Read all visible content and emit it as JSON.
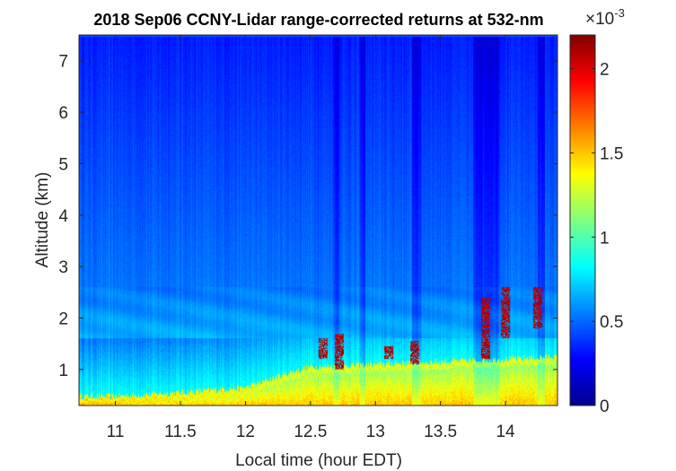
{
  "chart_data": {
    "type": "heatmap",
    "title": "2018 Sep06 CCNY-Lidar range-corrected returns at 532-nm",
    "xlabel": "Local time (hour EDT)",
    "ylabel": "Altitude (km)",
    "xlim": [
      10.72,
      14.4
    ],
    "ylim": [
      0.3,
      7.5
    ],
    "xticks": [
      11,
      11.5,
      12,
      12.5,
      13,
      13.5,
      14
    ],
    "xtick_labels": [
      "11",
      "11.5",
      "12",
      "12.5",
      "13",
      "13.5",
      "14"
    ],
    "yticks": [
      1,
      2,
      3,
      4,
      5,
      6,
      7
    ],
    "ytick_labels": [
      "1",
      "2",
      "3",
      "4",
      "5",
      "6",
      "7"
    ],
    "colormap": "jet",
    "colorbar": {
      "clim": [
        0,
        0.0022
      ],
      "ticks": [
        0,
        0.0005,
        0.001,
        0.0015,
        0.002
      ],
      "tick_labels": [
        "0",
        "0.5",
        "1",
        "1.5",
        "2"
      ],
      "exponent_base": "×10",
      "exponent_power": "-3"
    },
    "boundary_layer_top_km": [
      {
        "time": 10.72,
        "alt": 0.48
      },
      {
        "time": 11.0,
        "alt": 0.48
      },
      {
        "time": 11.5,
        "alt": 0.55
      },
      {
        "time": 12.0,
        "alt": 0.65
      },
      {
        "time": 12.3,
        "alt": 0.9
      },
      {
        "time": 12.5,
        "alt": 1.05
      },
      {
        "time": 13.0,
        "alt": 1.1
      },
      {
        "time": 13.5,
        "alt": 1.15
      },
      {
        "time": 14.0,
        "alt": 1.2
      },
      {
        "time": 14.4,
        "alt": 1.25
      }
    ],
    "clouds": [
      {
        "time": 12.6,
        "alt_bottom": 1.2,
        "alt_top": 1.6
      },
      {
        "time": 12.72,
        "alt_bottom": 1.0,
        "alt_top": 1.7
      },
      {
        "time": 13.1,
        "alt_bottom": 1.2,
        "alt_top": 1.45
      },
      {
        "time": 13.3,
        "alt_bottom": 1.1,
        "alt_top": 1.55
      },
      {
        "time": 13.85,
        "alt_bottom": 1.2,
        "alt_top": 2.4
      },
      {
        "time": 14.0,
        "alt_bottom": 1.6,
        "alt_top": 2.6
      },
      {
        "time": 14.25,
        "alt_bottom": 1.8,
        "alt_top": 2.6
      }
    ]
  }
}
